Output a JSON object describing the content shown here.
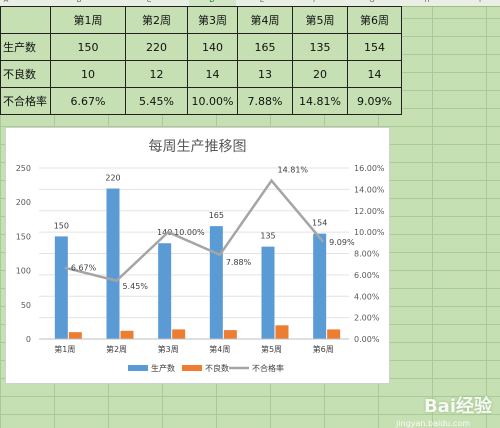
{
  "columns": [
    "A",
    "B",
    "C",
    "D",
    "E",
    "F",
    "G",
    "H",
    "I"
  ],
  "selected_column": "D",
  "table": {
    "header": [
      "",
      "第1周",
      "第2周",
      "第3周",
      "第4周",
      "第5周",
      "第6周"
    ],
    "rows": [
      {
        "label": "生产数",
        "values": [
          "150",
          "220",
          "140",
          "165",
          "135",
          "154"
        ]
      },
      {
        "label": "不良数",
        "values": [
          "10",
          "12",
          "14",
          "13",
          "20",
          "14"
        ]
      },
      {
        "label": "不合格率",
        "values": [
          "6.67%",
          "5.45%",
          "10.00%",
          "7.88%",
          "14.81%",
          "9.09%"
        ]
      }
    ]
  },
  "chart_data": {
    "type": "bar",
    "title": "每周生产推移图",
    "categories": [
      "第1周",
      "第2周",
      "第3周",
      "第4周",
      "第5周",
      "第6周"
    ],
    "series": [
      {
        "name": "生产数",
        "type": "bar",
        "axis": "left",
        "values": [
          150,
          220,
          140,
          165,
          135,
          154
        ],
        "color": "#5b9bd5"
      },
      {
        "name": "不良数",
        "type": "bar",
        "axis": "left",
        "values": [
          10,
          12,
          14,
          13,
          20,
          14
        ],
        "color": "#ed7d31"
      },
      {
        "name": "不合格率",
        "type": "line",
        "axis": "right",
        "values": [
          0.0667,
          0.0545,
          0.1,
          0.0788,
          0.1481,
          0.0909
        ],
        "color": "#a5a5a5"
      }
    ],
    "bar_labels": [
      "150",
      "220",
      "140",
      "165",
      "135",
      "154"
    ],
    "line_labels": [
      "6.67%",
      "5.45%",
      "10.00%",
      "7.88%",
      "14.81%",
      "9.09%"
    ],
    "y_left": {
      "min": 0,
      "max": 250,
      "ticks": [
        "0",
        "50",
        "100",
        "150",
        "200",
        "250"
      ]
    },
    "y_right": {
      "min": 0,
      "max": 0.16,
      "ticks": [
        "0.00%",
        "2.00%",
        "4.00%",
        "6.00%",
        "8.00%",
        "10.00%",
        "12.00%",
        "14.00%",
        "16.00%"
      ]
    },
    "grid": true,
    "legend_position": "bottom"
  },
  "watermark": {
    "text": "Bai经验",
    "sub": "jingyan.baidu.com"
  }
}
